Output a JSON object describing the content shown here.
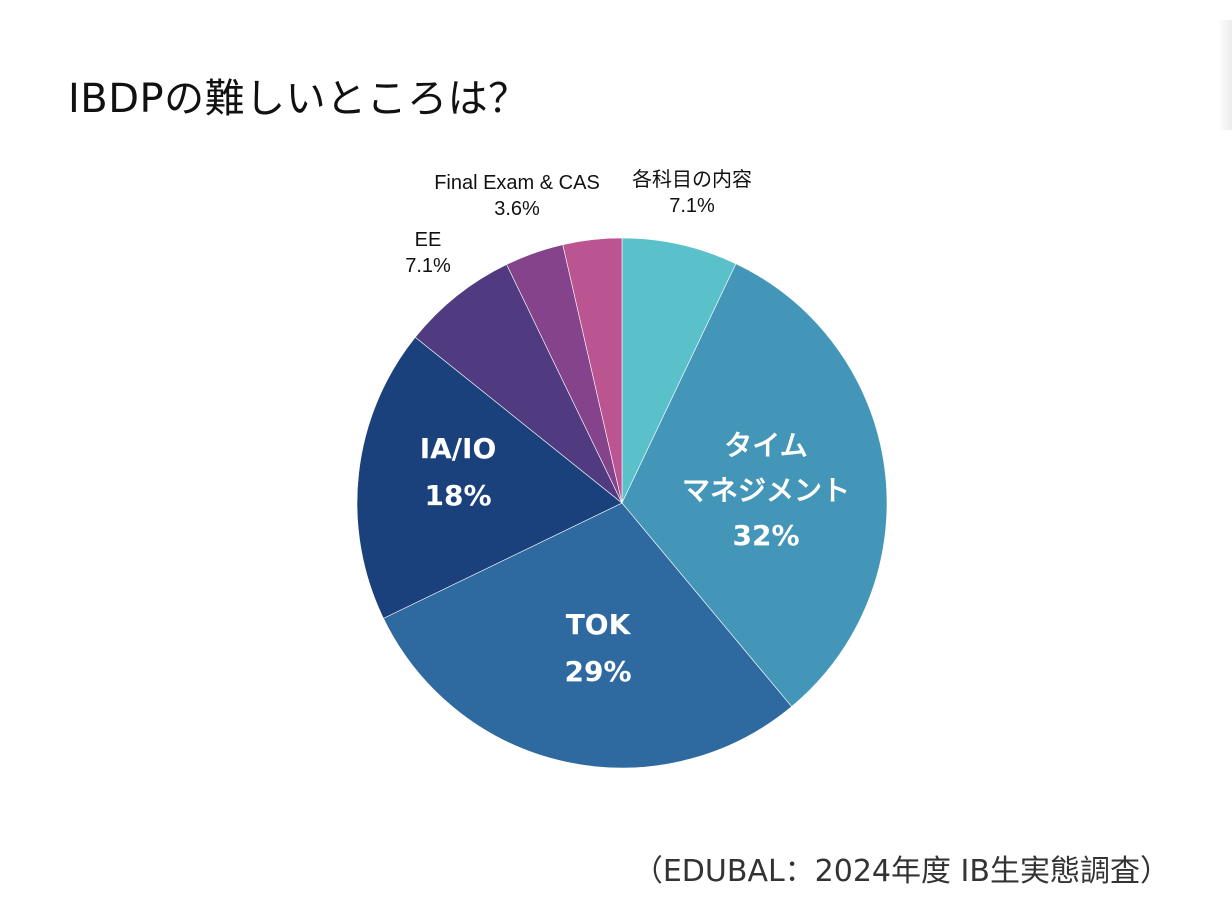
{
  "title": "IBDPの難しいところは？",
  "source": "（EDUBAL：2024年度 IB生実態調査）",
  "chart_data": {
    "type": "pie",
    "title": "",
    "slices": [
      {
        "label": "各科目の内容",
        "label_lines": [
          "各科目の内容"
        ],
        "value": 7.1,
        "value_label": "7.1%",
        "color": "#5ac0c9",
        "label_position": "outside"
      },
      {
        "label": "タイム マネジメント",
        "label_lines": [
          "タイム",
          "マネジメント"
        ],
        "value": 32,
        "value_label": "32%",
        "color": "#4496b8",
        "label_position": "inside"
      },
      {
        "label": "TOK",
        "label_lines": [
          "TOK"
        ],
        "value": 29,
        "value_label": "29%",
        "color": "#2e6aa0",
        "label_position": "inside"
      },
      {
        "label": "IA/IO",
        "label_lines": [
          "IA/IO"
        ],
        "value": 18,
        "value_label": "18%",
        "color": "#1a417b",
        "label_position": "inside"
      },
      {
        "label": "EE",
        "label_lines": [
          "EE"
        ],
        "value": 7.1,
        "value_label": "7.1%",
        "color": "#503a80",
        "label_position": "outside"
      },
      {
        "label": "Final Exam & CAS",
        "label_lines": [
          "Final Exam & CAS"
        ],
        "value": 3.6,
        "value_label": "3.6%",
        "color": "#85438b",
        "label_position": "outside"
      },
      {
        "label": "",
        "label_lines": [],
        "value": 3.6,
        "value_label": "",
        "color": "#bb5591",
        "label_position": "none"
      }
    ],
    "start_angle": "12 o'clock",
    "direction": "clockwise",
    "legend": "none"
  }
}
